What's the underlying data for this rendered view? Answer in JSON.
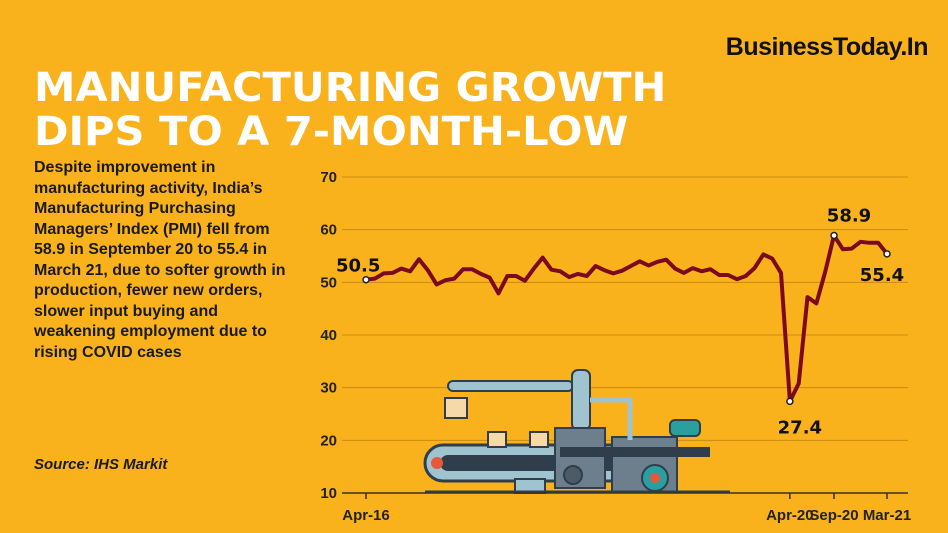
{
  "brand": "BusinessToday.In",
  "title_lines": [
    "MANUFACTURING GROWTH",
    "DIPS TO A 7-MONTH-LOW"
  ],
  "description": "Despite improvement in manufacturing activity, India’s Manufacturing Purchasing Managers’ Index (PMI) fell from 58.9 in September 20 to 55.4 in March 21, due to softer growth in production, fewer new orders, slower input buying and weakening employment due to rising COVID cases",
  "source": "Source: IHS Markit",
  "colors": {
    "background": "#F9B21B",
    "line": "#7B0A1E",
    "title": "#FFFFFF",
    "grid": "#C98A12"
  },
  "chart_data": {
    "type": "line",
    "title": "",
    "xlabel": "",
    "ylabel": "",
    "ylim": [
      10,
      70
    ],
    "yticks": [
      10,
      20,
      30,
      40,
      50,
      60,
      70
    ],
    "xticks": [
      "Apr-16",
      "Apr-20",
      "Sep-20",
      "Mar-21"
    ],
    "xtick_month_index": [
      0,
      48,
      53,
      59
    ],
    "grid": true,
    "x": [
      "Apr-16",
      "May-16",
      "Jun-16",
      "Jul-16",
      "Aug-16",
      "Sep-16",
      "Oct-16",
      "Nov-16",
      "Dec-16",
      "Jan-17",
      "Feb-17",
      "Mar-17",
      "Apr-17",
      "May-17",
      "Jun-17",
      "Jul-17",
      "Aug-17",
      "Sep-17",
      "Oct-17",
      "Nov-17",
      "Dec-17",
      "Jan-18",
      "Feb-18",
      "Mar-18",
      "Apr-18",
      "May-18",
      "Jun-18",
      "Jul-18",
      "Aug-18",
      "Sep-18",
      "Oct-18",
      "Nov-18",
      "Dec-18",
      "Jan-19",
      "Feb-19",
      "Mar-19",
      "Apr-19",
      "May-19",
      "Jun-19",
      "Jul-19",
      "Aug-19",
      "Sep-19",
      "Oct-19",
      "Nov-19",
      "Dec-19",
      "Jan-20",
      "Feb-20",
      "Mar-20",
      "Apr-20",
      "May-20",
      "Jun-20",
      "Jul-20",
      "Aug-20",
      "Sep-20",
      "Oct-20",
      "Nov-20",
      "Dec-20",
      "Jan-21",
      "Feb-21",
      "Mar-21"
    ],
    "series": [
      {
        "values": [
          50.5,
          50.7,
          51.7,
          51.8,
          52.6,
          52.1,
          54.4,
          52.3,
          49.6,
          50.4,
          50.7,
          52.5,
          52.5,
          51.6,
          50.9,
          47.9,
          51.2,
          51.2,
          50.3,
          52.6,
          54.7,
          52.4,
          52.1,
          51.0,
          51.6,
          51.2,
          53.1,
          52.3,
          51.7,
          52.2,
          53.1,
          54.0,
          53.2,
          53.9,
          54.3,
          52.6,
          51.8,
          52.7,
          52.1,
          52.5,
          51.4,
          51.4,
          50.6,
          51.2,
          52.7,
          55.3,
          54.5,
          51.8,
          27.4,
          30.8,
          47.2,
          46.0,
          52.0,
          58.9,
          56.3,
          56.4,
          57.7,
          57.5,
          57.5,
          55.4
        ]
      }
    ],
    "annotations": [
      {
        "x": "Apr-16",
        "label": "50.5"
      },
      {
        "x": "Apr-20",
        "label": "27.4"
      },
      {
        "x": "Sep-20",
        "label": "58.9"
      },
      {
        "x": "Mar-21",
        "label": "55.4"
      }
    ]
  }
}
